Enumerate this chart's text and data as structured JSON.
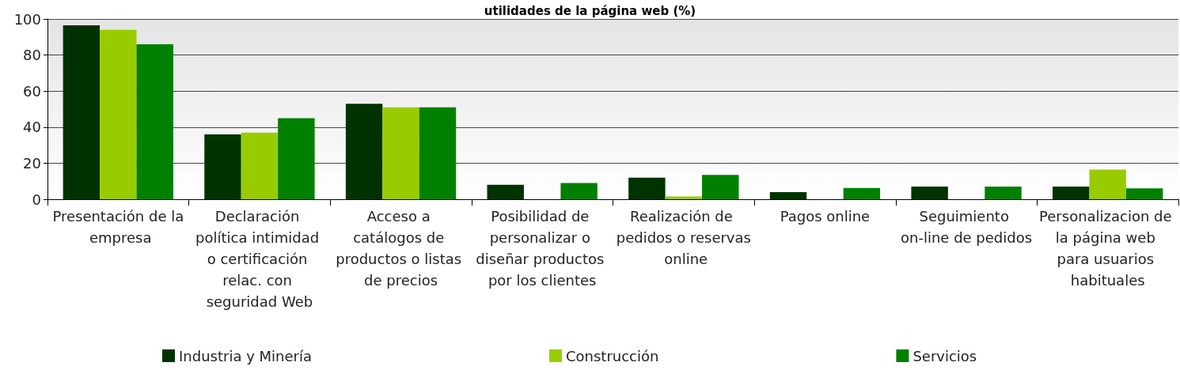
{
  "chart_data": {
    "type": "bar",
    "title": "utilidades de la página web (%)",
    "categories": [
      "Presentación de la empresa",
      "Declaración política intimidad o certificación relac. con seguridad Web",
      "Acceso a catálogos de productos o listas de precios",
      "Posibilidad de personalizar o diseñar productos por los clientes",
      "Realización de pedidos o reservas online",
      "Pagos online",
      "Seguimiento on-line de pedidos",
      "Personalizacion de la página web para usuarios habituales"
    ],
    "series": [
      {
        "name": "Industria y Minería",
        "color": "#003300",
        "values": [
          96.5,
          36,
          53,
          8,
          12,
          4,
          7,
          7
        ]
      },
      {
        "name": "Construcción",
        "color": "#99cc00",
        "values": [
          94,
          37,
          51,
          0,
          1.5,
          0,
          0,
          16.5
        ]
      },
      {
        "name": "Servicios",
        "color": "#008000",
        "values": [
          86,
          45,
          51,
          9,
          13.5,
          6.2,
          7,
          6
        ]
      }
    ],
    "ylim": [
      0,
      100
    ],
    "yticks": [
      0,
      20,
      40,
      60,
      80,
      100
    ],
    "grid": "y",
    "legend": "bottom"
  }
}
